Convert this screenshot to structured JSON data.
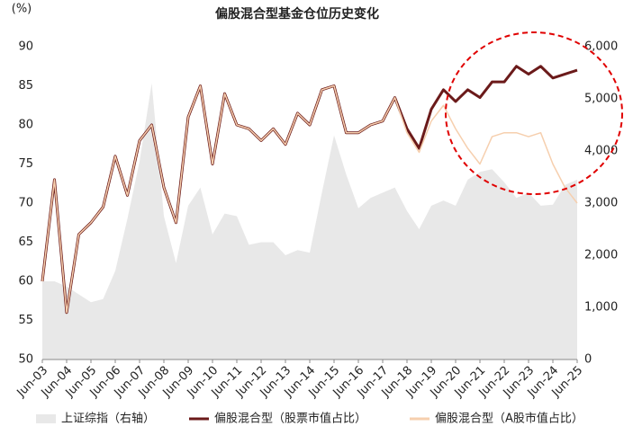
{
  "chart_data": {
    "type": "line",
    "title": "偏股混合型基金仓位历史变化",
    "y_label": "(%)",
    "categories": [
      "Jun-03",
      null,
      "Jun-04",
      null,
      "Jun-05",
      null,
      "Jun-06",
      null,
      "Jun-07",
      null,
      "Jun-08",
      null,
      "Jun-09",
      null,
      "Jun-10",
      null,
      "Jun-11",
      null,
      "Jun-12",
      null,
      "Jun-13",
      null,
      "Jun-14",
      null,
      "Jun-15",
      null,
      "Jun-16",
      null,
      "Jun-17",
      null,
      "Jun-18",
      null,
      "Jun-19",
      null,
      "Jun-20",
      null,
      "Jun-21",
      null,
      "Jun-22",
      null,
      "Jun-23",
      null,
      "Jun-24",
      null,
      "Jun-25"
    ],
    "series": [
      {
        "name": "上证综指（右轴）",
        "color": "#e8e8e8",
        "kind": "area",
        "axis": "y2",
        "values": [
          1500,
          1500,
          1400,
          1250,
          1100,
          1160,
          1700,
          2700,
          3800,
          5300,
          2750,
          1850,
          2950,
          3300,
          2400,
          2800,
          2750,
          2200,
          2250,
          2250,
          2000,
          2100,
          2050,
          3200,
          4300,
          3550,
          2900,
          3100,
          3200,
          3300,
          2850,
          2500,
          2950,
          3050,
          2950,
          3450,
          3600,
          3650,
          3400,
          3100,
          3200,
          2950,
          2970,
          3350,
          3450
        ]
      },
      {
        "name": "偏股混合型（股票市值占比）",
        "color": "#6b1a1a",
        "kind": "line",
        "values": [
          60,
          73,
          56,
          66,
          67.5,
          69.5,
          76,
          71,
          78,
          80,
          72,
          67.5,
          81,
          85,
          75,
          84,
          80,
          79.5,
          78,
          79.5,
          77.5,
          81.5,
          80,
          84.5,
          85,
          79,
          79,
          80,
          80.5,
          83.5,
          79.5,
          77,
          82,
          84.5,
          83,
          84.5,
          83.5,
          85.5,
          85.5,
          87.5,
          86.5,
          87.5,
          86,
          86.5,
          87
        ]
      },
      {
        "name": "偏股混合型（A股市值占比）",
        "color": "#f6cfae",
        "kind": "line",
        "values": [
          60,
          73,
          56,
          66,
          67.5,
          69.5,
          76,
          71,
          78,
          80,
          72,
          67.5,
          81,
          85,
          75,
          84,
          80,
          79.5,
          78,
          79.5,
          77.5,
          81.5,
          80,
          84.5,
          85,
          79,
          79,
          80,
          80.5,
          83.5,
          79,
          76.5,
          80.5,
          82.5,
          79.5,
          77,
          75,
          78.5,
          79,
          79,
          78.5,
          79,
          75,
          72,
          70
        ]
      }
    ],
    "ylim": [
      50,
      90
    ],
    "yticks": [
      50,
      55,
      60,
      65,
      70,
      75,
      80,
      85,
      90
    ],
    "y2lim": [
      0,
      6000
    ],
    "y2ticks": [
      0,
      {
        "value": 1000,
        "label": "1,000"
      },
      {
        "value": 2000,
        "label": "2,000"
      },
      {
        "value": 3000,
        "label": "3,000"
      },
      {
        "value": 4000,
        "label": "4,000"
      },
      {
        "value": 5000,
        "label": "5,000"
      },
      {
        "value": 6000,
        "label": "6,000"
      }
    ],
    "legend": "bottom"
  }
}
